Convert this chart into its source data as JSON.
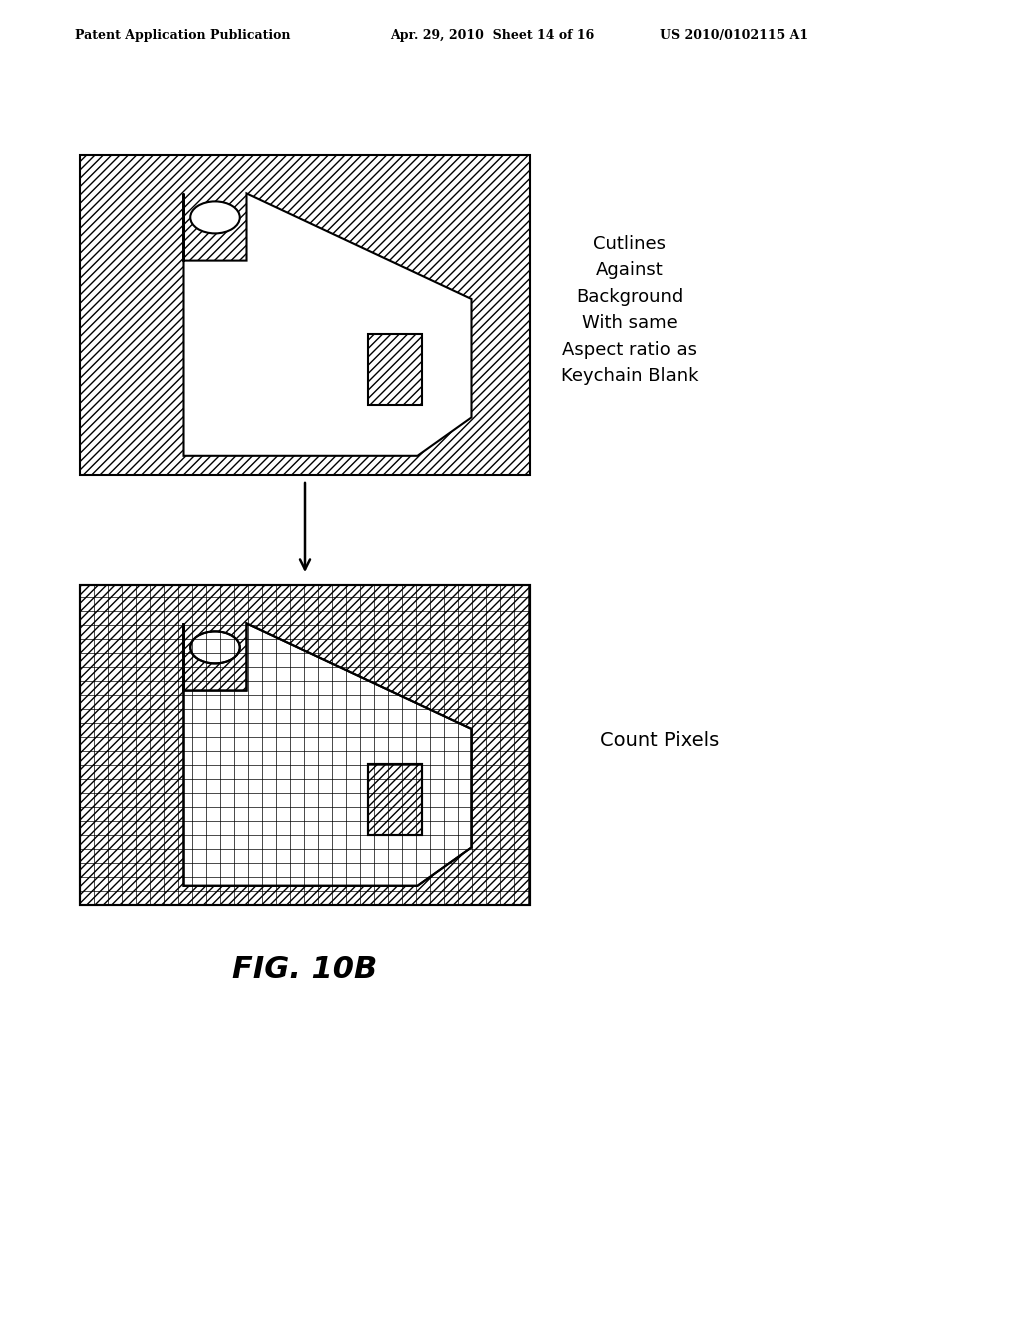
{
  "header_left": "Patent Application Publication",
  "header_mid": "Apr. 29, 2010  Sheet 14 of 16",
  "header_right": "US 2010/0102115 A1",
  "label_top": "Cutlines\nAgainst\nBackground\nWith same\nAspect ratio as\nKeychain Blank",
  "label_bottom": "Count Pixels",
  "figure_label": "FIG. 10B",
  "bg_color": "#ffffff",
  "hatch_color": "#000000",
  "line_color": "#000000"
}
